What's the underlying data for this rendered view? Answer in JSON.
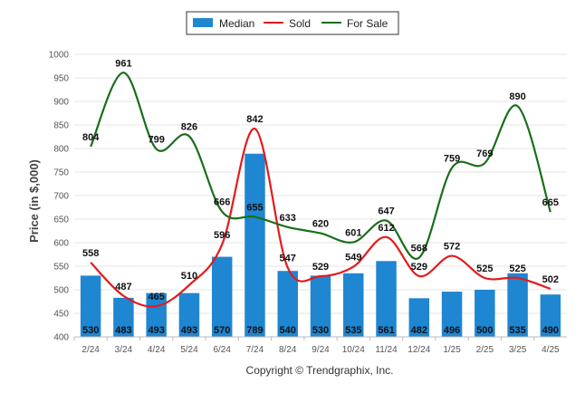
{
  "chart_data": {
    "type": "bar",
    "categories": [
      "2/24",
      "3/24",
      "4/24",
      "5/24",
      "6/24",
      "7/24",
      "8/24",
      "9/24",
      "10/24",
      "11/24",
      "12/24",
      "1/25",
      "2/25",
      "3/25",
      "4/25"
    ],
    "series": [
      {
        "name": "Median",
        "type": "bar",
        "color": "#1f86d1",
        "values": [
          530,
          483,
          493,
          493,
          570,
          789,
          540,
          530,
          535,
          561,
          482,
          496,
          500,
          535,
          490
        ]
      },
      {
        "name": "Sold",
        "type": "line",
        "color": "#e41a1c",
        "values": [
          558,
          487,
          465,
          510,
          596,
          842,
          547,
          529,
          549,
          612,
          529,
          572,
          525,
          525,
          502
        ]
      },
      {
        "name": "For Sale",
        "type": "line",
        "color": "#1a6e1a",
        "values": [
          804,
          961,
          799,
          826,
          666,
          655,
          633,
          620,
          601,
          647,
          568,
          759,
          769,
          890,
          665
        ]
      }
    ],
    "ylabel": "Price (in $,000)",
    "ylim": [
      400,
      1000
    ],
    "yticks": [
      400,
      450,
      500,
      550,
      600,
      650,
      700,
      750,
      800,
      850,
      900,
      950,
      1000
    ],
    "legend_position": "top-center",
    "grid": true
  },
  "footer": {
    "copyright": "Copyright © Trendgraphix, Inc."
  }
}
